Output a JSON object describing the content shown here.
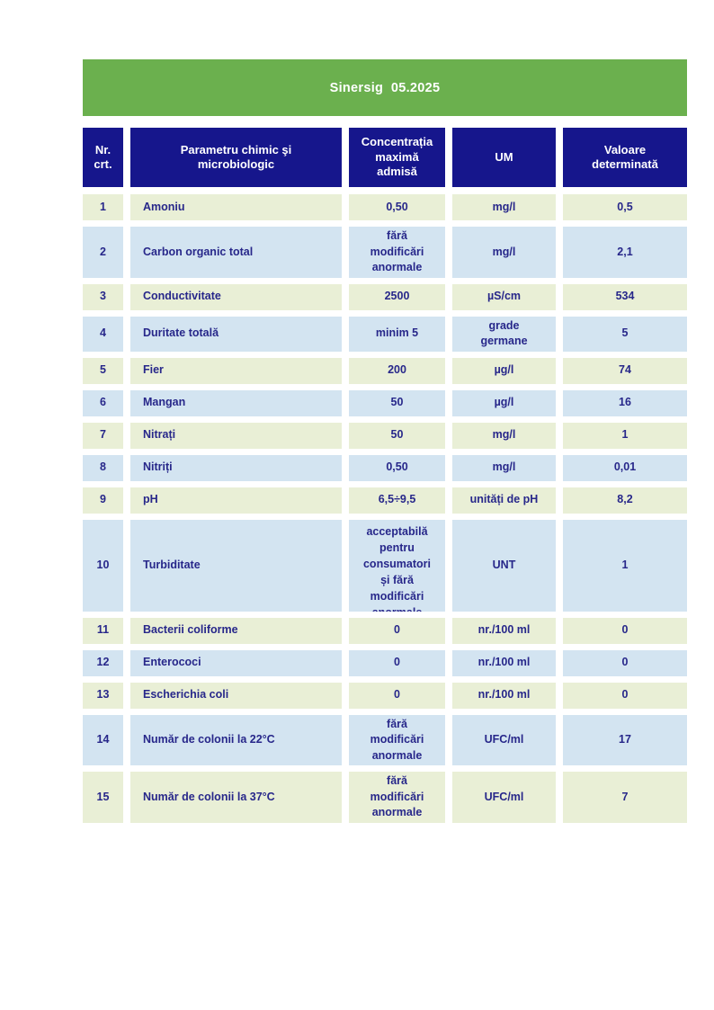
{
  "banner": {
    "title": "Sinersig  05.2025"
  },
  "table": {
    "headers": [
      "Nr.\ncrt.",
      "Parametru chimic şi\nmicrobiologic",
      "Concentrația\nmaximă\nadmisă",
      "UM",
      "Valoare\ndeterminată"
    ],
    "rows": [
      {
        "nr": "1",
        "param": "Amoniu",
        "cma": "0,50",
        "um": "mg/l",
        "valoare": "0,5"
      },
      {
        "nr": "2",
        "param": "Carbon organic total",
        "cma": "fără\nmodificări\nanormale",
        "um": "mg/l",
        "valoare": "2,1"
      },
      {
        "nr": "3",
        "param": "Conductivitate",
        "cma": "2500",
        "um": "µS/cm",
        "valoare": "534"
      },
      {
        "nr": "4",
        "param": "Duritate totală",
        "cma": "minim 5",
        "um": "grade\ngermane",
        "valoare": "5"
      },
      {
        "nr": "5",
        "param": "Fier",
        "cma": "200",
        "um": "µg/l",
        "valoare": "74"
      },
      {
        "nr": "6",
        "param": "Mangan",
        "cma": "50",
        "um": "µg/l",
        "valoare": "16"
      },
      {
        "nr": "7",
        "param": "Nitrați",
        "cma": "50",
        "um": "mg/l",
        "valoare": "1"
      },
      {
        "nr": "8",
        "param": "Nitriți",
        "cma": "0,50",
        "um": "mg/l",
        "valoare": "0,01"
      },
      {
        "nr": "9",
        "param": "pH",
        "cma": "6,5÷9,5",
        "um": "unități de pH",
        "valoare": "8,2"
      },
      {
        "nr": "10",
        "param": "Turbiditate",
        "cma": "acceptabilă\npentru\nconsumatori\nși fără\nmodificări\nanormale",
        "um": "UNT",
        "valoare": "1"
      },
      {
        "nr": "11",
        "param": "Bacterii coliforme",
        "cma": "0",
        "um": "nr./100 ml",
        "valoare": "0"
      },
      {
        "nr": "12",
        "param": "Enterococi",
        "cma": "0",
        "um": "nr./100 ml",
        "valoare": "0"
      },
      {
        "nr": "13",
        "param": "Escherichia coli",
        "cma": "0",
        "um": "nr./100 ml",
        "valoare": "0"
      },
      {
        "nr": "14",
        "param": "Număr de colonii la 22°C",
        "cma": "fără\nmodificări\nanormale",
        "um": "UFC/ml",
        "valoare": "17"
      },
      {
        "nr": "15",
        "param": "Număr de colonii la 37°C",
        "cma": "fără\nmodificări\nanormale",
        "um": "UFC/ml",
        "valoare": "7"
      }
    ]
  },
  "colors": {
    "banner_green": "#6bb04e",
    "header_navy": "#16168c",
    "header_text": "#ffffff",
    "row_green": "#e9efd6",
    "row_blue": "#d3e4f1",
    "text_navy": "#27278a"
  }
}
